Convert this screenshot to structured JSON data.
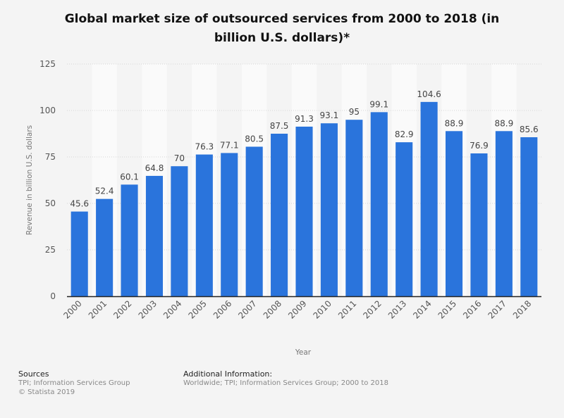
{
  "chart_data": {
    "type": "bar",
    "title_lines": [
      "Global market size of outsourced services from 2000 to 2018 (in",
      "billion U.S. dollars)*"
    ],
    "xlabel": "Year",
    "ylabel": "Revenue in billion U.S. dollars",
    "ylim": [
      0,
      125
    ],
    "yticks": [
      0,
      25,
      50,
      75,
      100,
      125
    ],
    "grid": true,
    "categories": [
      "2000",
      "2001",
      "2002",
      "2003",
      "2004",
      "2005",
      "2006",
      "2007",
      "2008",
      "2009",
      "2010",
      "2011",
      "2012",
      "2013",
      "2014",
      "2015",
      "2016",
      "2017",
      "2018"
    ],
    "values": [
      45.6,
      52.4,
      60.1,
      64.8,
      70,
      76.3,
      77.1,
      80.5,
      87.5,
      91.3,
      93.1,
      95,
      99.1,
      82.9,
      104.6,
      88.9,
      76.9,
      88.9,
      85.6
    ],
    "value_labels": [
      "45.6",
      "52.4",
      "60.1",
      "64.8",
      "70",
      "76.3",
      "77.1",
      "80.5",
      "87.5",
      "91.3",
      "93.1",
      "95",
      "99.1",
      "82.9",
      "104.6",
      "88.9",
      "76.9",
      "88.9",
      "85.6"
    ],
    "bar_color": "#2a74dc"
  },
  "footer": {
    "sources_heading": "Sources",
    "sources_line1": "TPI; Information Services Group",
    "sources_line2": "© Statista 2019",
    "additional_heading": "Additional Information:",
    "additional_text": "Worldwide; TPI; Information Services Group; 2000 to 2018"
  }
}
